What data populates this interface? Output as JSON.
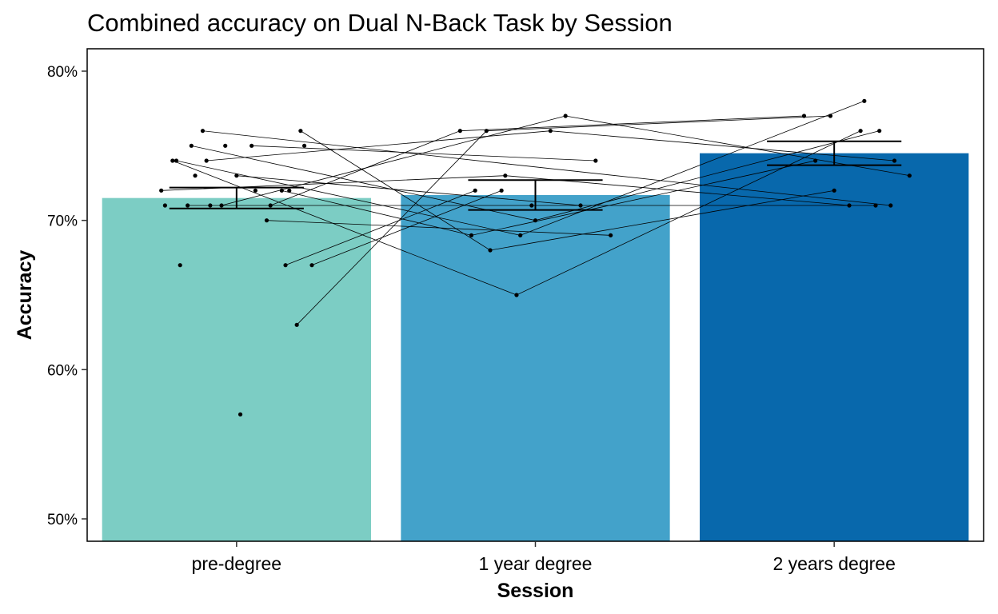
{
  "chart_data": {
    "type": "bar",
    "title": "Combined accuracy on Dual N-Back Task by Session",
    "xlabel": "Session",
    "ylabel": "Accuracy",
    "categories": [
      "pre-degree",
      "1 year degree",
      "2 years degree"
    ],
    "ylim": [
      48.5,
      81.5
    ],
    "yticks": [
      50,
      60,
      70,
      80
    ],
    "ytick_labels": [
      "50%",
      "60%",
      "70%",
      "80%"
    ],
    "grid": false,
    "legend": "none",
    "values": [
      71.5,
      71.7,
      74.5
    ],
    "error_bars": [
      {
        "low": 70.8,
        "high": 72.2
      },
      {
        "low": 70.7,
        "high": 72.7
      },
      {
        "low": 73.7,
        "high": 75.3
      }
    ],
    "bar_colors": [
      "#7ccdc4",
      "#43a2ca",
      "#0868ac"
    ],
    "participants": [
      [
        76,
        null,
        71
      ],
      [
        71,
        71,
        71
      ],
      [
        74,
        65,
        76
      ],
      [
        67,
        72,
        null
      ],
      [
        63,
        76,
        77
      ],
      [
        72,
        69,
        74
      ],
      [
        70,
        69,
        null
      ],
      [
        75,
        74,
        null
      ],
      [
        73,
        71,
        null
      ],
      [
        71,
        77,
        73
      ],
      [
        74,
        76,
        74
      ],
      [
        75,
        70,
        76
      ],
      [
        74,
        69,
        78
      ],
      [
        72,
        73,
        71
      ],
      [
        76,
        68,
        72
      ],
      [
        67,
        72,
        null
      ],
      [
        71,
        76,
        77
      ],
      [
        72,
        null,
        null
      ],
      [
        57,
        null,
        null
      ],
      [
        75,
        null,
        null
      ],
      [
        71,
        null,
        null
      ],
      [
        73,
        null,
        null
      ],
      [
        67,
        null,
        null
      ],
      [
        71,
        null,
        null
      ],
      [
        75,
        null,
        null
      ],
      [
        72,
        null,
        null
      ]
    ]
  }
}
